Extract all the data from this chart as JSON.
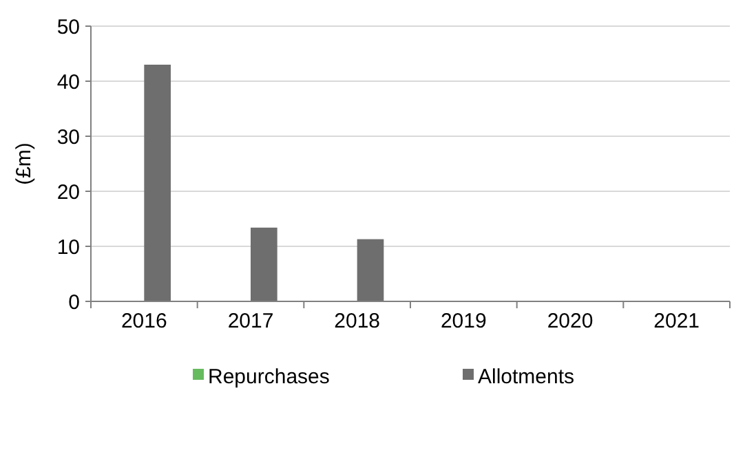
{
  "chart_data": {
    "type": "bar",
    "ylabel": "(£m)",
    "categories": [
      "2016",
      "2017",
      "2018",
      "2019",
      "2020",
      "2021"
    ],
    "series": [
      {
        "name": "Repurchases",
        "color": "#66bb5e",
        "values": [
          0,
          0,
          0,
          0,
          0,
          0
        ]
      },
      {
        "name": "Allotments",
        "color": "#6e6e6e",
        "values": [
          43,
          13.4,
          11.3,
          0,
          0,
          0
        ]
      }
    ],
    "ylim": [
      0,
      50
    ],
    "yticks": [
      0,
      10,
      20,
      30,
      40,
      50
    ],
    "grid": "y",
    "legend": "bottom"
  }
}
